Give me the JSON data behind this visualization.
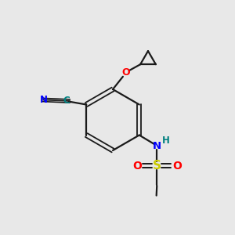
{
  "background_color": "#e8e8e8",
  "bond_color": "#1a1a1a",
  "colors": {
    "N": "#0000ff",
    "O": "#ff0000",
    "S": "#cccc00",
    "H": "#008080",
    "CN_N": "#0000ff",
    "C_label": "#008080"
  },
  "figsize": [
    3.0,
    3.0
  ],
  "dpi": 100
}
